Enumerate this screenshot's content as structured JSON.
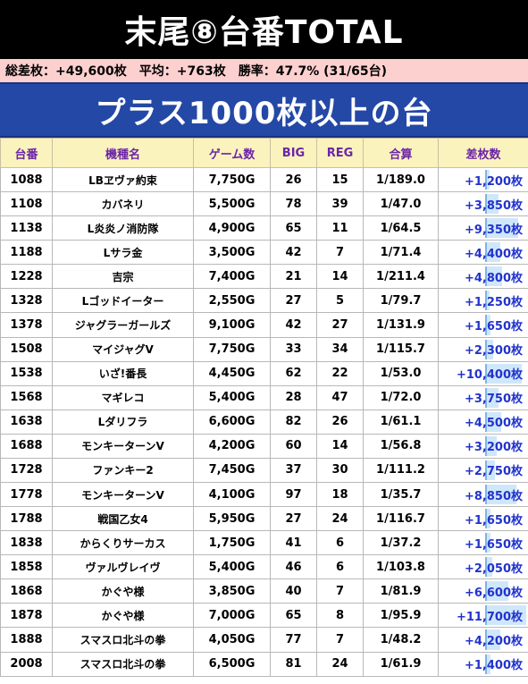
{
  "title": "末尾⑧台番TOTAL",
  "summary": {
    "total": "総差枚：+49,600枚",
    "average": "平均：+763枚",
    "win_rate": "勝率：47.7% (31/65台)"
  },
  "subtitle": "プラス1000枚以上の台",
  "columns": [
    "台番",
    "機種名",
    "ゲーム数",
    "BIG",
    "REG",
    "合算",
    "差枚数"
  ],
  "rows": [
    {
      "no": "1088",
      "name": "LBヱヴァ約束",
      "games": "7,750G",
      "big": "26",
      "reg": "15",
      "combined": "1/189.0",
      "diff": "+1,200枚",
      "diff_value": 1200
    },
    {
      "no": "1108",
      "name": "カバネリ",
      "games": "5,500G",
      "big": "78",
      "reg": "39",
      "combined": "1/47.0",
      "diff": "+3,850枚",
      "diff_value": 3850
    },
    {
      "no": "1138",
      "name": "L炎炎ノ消防隊",
      "games": "4,900G",
      "big": "65",
      "reg": "11",
      "combined": "1/64.5",
      "diff": "+9,350枚",
      "diff_value": 9350
    },
    {
      "no": "1188",
      "name": "Lサラ金",
      "games": "3,500G",
      "big": "42",
      "reg": "7",
      "combined": "1/71.4",
      "diff": "+4,400枚",
      "diff_value": 4400
    },
    {
      "no": "1228",
      "name": "吉宗",
      "games": "7,400G",
      "big": "21",
      "reg": "14",
      "combined": "1/211.4",
      "diff": "+4,800枚",
      "diff_value": 4800
    },
    {
      "no": "1328",
      "name": "Lゴッドイーター",
      "games": "2,550G",
      "big": "27",
      "reg": "5",
      "combined": "1/79.7",
      "diff": "+1,250枚",
      "diff_value": 1250
    },
    {
      "no": "1378",
      "name": "ジャグラーガールズ",
      "games": "9,100G",
      "big": "42",
      "reg": "27",
      "combined": "1/131.9",
      "diff": "+1,650枚",
      "diff_value": 1650
    },
    {
      "no": "1508",
      "name": "マイジャグV",
      "games": "7,750G",
      "big": "33",
      "reg": "34",
      "combined": "1/115.7",
      "diff": "+2,300枚",
      "diff_value": 2300
    },
    {
      "no": "1538",
      "name": "いざ!番長",
      "games": "4,450G",
      "big": "62",
      "reg": "22",
      "combined": "1/53.0",
      "diff": "+10,400枚",
      "diff_value": 10400
    },
    {
      "no": "1568",
      "name": "マギレコ",
      "games": "5,400G",
      "big": "28",
      "reg": "47",
      "combined": "1/72.0",
      "diff": "+3,750枚",
      "diff_value": 3750
    },
    {
      "no": "1638",
      "name": "Lダリフラ",
      "games": "6,600G",
      "big": "82",
      "reg": "26",
      "combined": "1/61.1",
      "diff": "+4,500枚",
      "diff_value": 4500
    },
    {
      "no": "1688",
      "name": "モンキーターンV",
      "games": "4,200G",
      "big": "60",
      "reg": "14",
      "combined": "1/56.8",
      "diff": "+3,200枚",
      "diff_value": 3200
    },
    {
      "no": "1728",
      "name": "ファンキー2",
      "games": "7,450G",
      "big": "37",
      "reg": "30",
      "combined": "1/111.2",
      "diff": "+2,750枚",
      "diff_value": 2750
    },
    {
      "no": "1778",
      "name": "モンキーターンV",
      "games": "4,100G",
      "big": "97",
      "reg": "18",
      "combined": "1/35.7",
      "diff": "+8,850枚",
      "diff_value": 8850
    },
    {
      "no": "1788",
      "name": "戦国乙女4",
      "games": "5,950G",
      "big": "27",
      "reg": "24",
      "combined": "1/116.7",
      "diff": "+1,650枚",
      "diff_value": 1650
    },
    {
      "no": "1838",
      "name": "からくりサーカス",
      "games": "1,750G",
      "big": "41",
      "reg": "6",
      "combined": "1/37.2",
      "diff": "+1,650枚",
      "diff_value": 1650
    },
    {
      "no": "1858",
      "name": "ヴァルヴレイヴ",
      "games": "5,400G",
      "big": "46",
      "reg": "6",
      "combined": "1/103.8",
      "diff": "+2,050枚",
      "diff_value": 2050
    },
    {
      "no": "1868",
      "name": "かぐや様",
      "games": "3,850G",
      "big": "40",
      "reg": "7",
      "combined": "1/81.9",
      "diff": "+6,600枚",
      "diff_value": 6600
    },
    {
      "no": "1878",
      "name": "かぐや様",
      "games": "7,000G",
      "big": "65",
      "reg": "8",
      "combined": "1/95.9",
      "diff": "+11,700枚",
      "diff_value": 11700
    },
    {
      "no": "1888",
      "name": "スマスロ北斗の拳",
      "games": "4,050G",
      "big": "77",
      "reg": "7",
      "combined": "1/48.2",
      "diff": "+4,200枚",
      "diff_value": 4200
    },
    {
      "no": "2008",
      "name": "スマスロ北斗の拳",
      "games": "6,500G",
      "big": "81",
      "reg": "24",
      "combined": "1/61.9",
      "diff": "+1,400枚",
      "diff_value": 1400
    }
  ],
  "colors": {
    "header_bg": "#fbf3bd",
    "header_text": "#6b24a8",
    "diff_text": "#2233cc",
    "bar_fill": "#cfe7fb",
    "subtitle_bg": "#2448a6",
    "summary_bg": "#fdd0d0"
  }
}
